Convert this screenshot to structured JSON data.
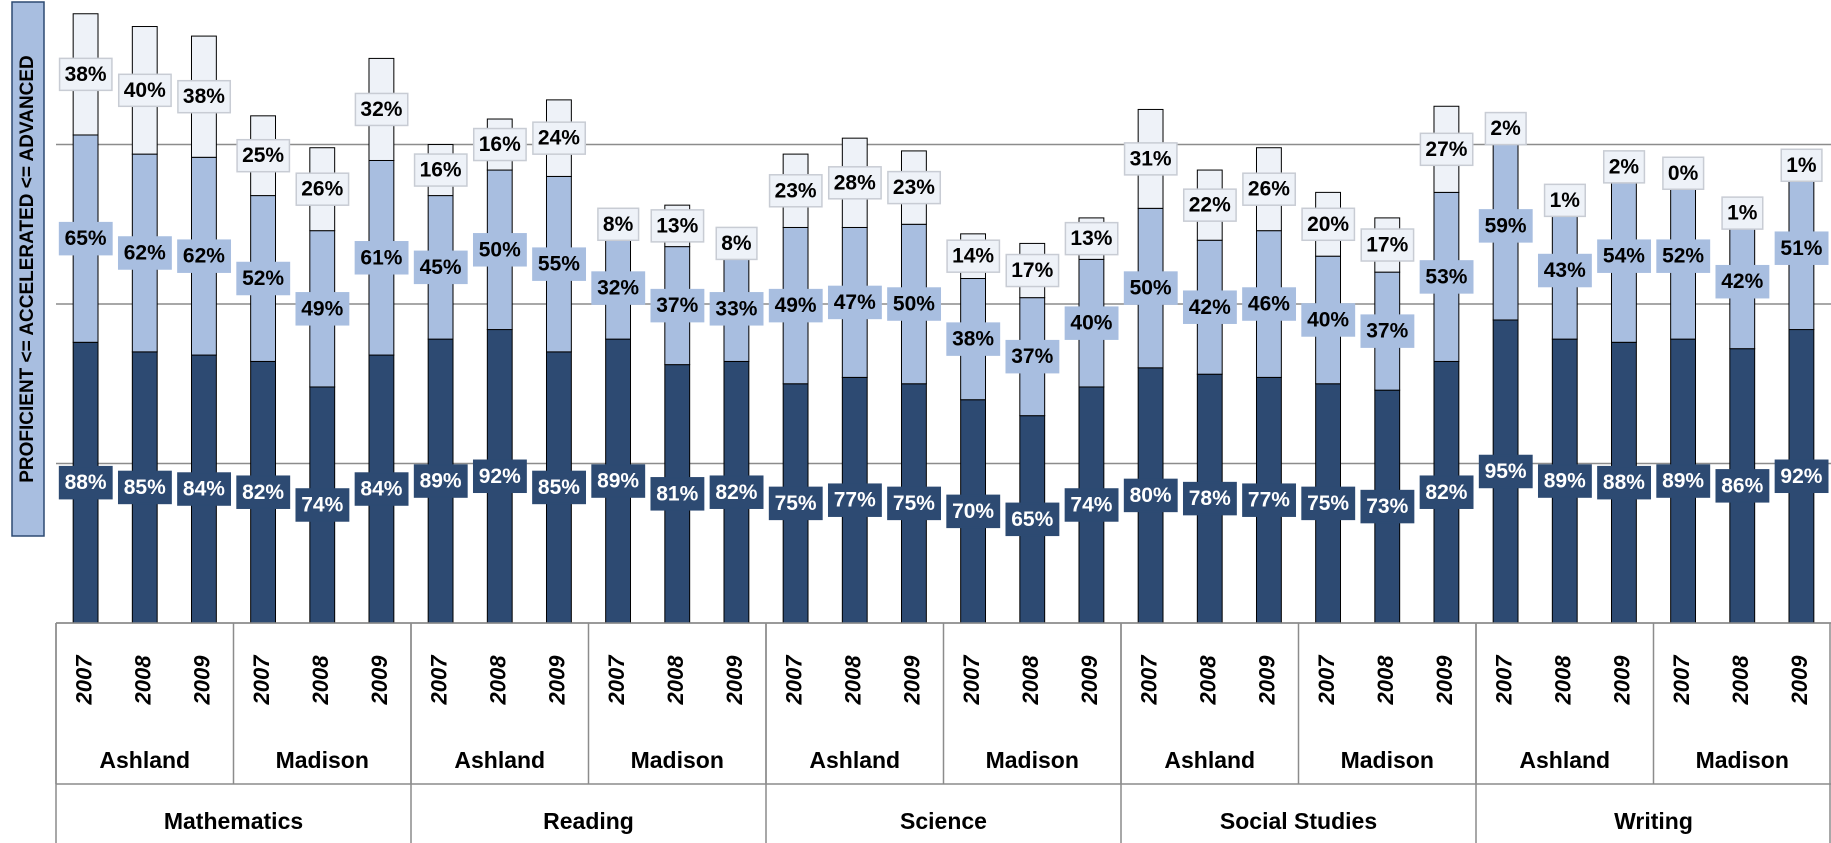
{
  "chart_data": {
    "type": "stacked-bar",
    "y_axis_label": "PROFICIENT <= ACCELERATED <= ADVANCED",
    "categories": [
      "2007",
      "2008",
      "2009",
      "2007",
      "2008",
      "2009",
      "2007",
      "2008",
      "2009",
      "2007",
      "2008",
      "2009",
      "2007",
      "2008",
      "2009",
      "2007",
      "2008",
      "2009",
      "2007",
      "2008",
      "2009",
      "2007",
      "2008",
      "2009",
      "2007",
      "2008",
      "2009",
      "2007",
      "2008",
      "2009"
    ],
    "schools": [
      "Ashland",
      "Madison",
      "Ashland",
      "Madison",
      "Ashland",
      "Madison",
      "Ashland",
      "Madison",
      "Ashland",
      "Madison"
    ],
    "subjects": [
      "Mathematics",
      "Reading",
      "Science",
      "Social Studies",
      "Writing"
    ],
    "series": [
      {
        "color": "#2d4a72",
        "label_text_color": "#ffffff",
        "values": [
          88,
          85,
          84,
          82,
          74,
          84,
          89,
          92,
          85,
          89,
          81,
          82,
          75,
          77,
          75,
          70,
          65,
          74,
          80,
          78,
          77,
          75,
          73,
          82,
          95,
          89,
          88,
          89,
          86,
          92
        ],
        "value_labels": [
          "88%",
          "85%",
          "84%",
          "82%",
          "74%",
          "84%",
          "89%",
          "92%",
          "85%",
          "89%",
          "81%",
          "82%",
          "75%",
          "77%",
          "75%",
          "70%",
          "65%",
          "74%",
          "80%",
          "78%",
          "77%",
          "75%",
          "73%",
          "82%",
          "95%",
          "89%",
          "88%",
          "89%",
          "86%",
          "92%"
        ]
      },
      {
        "color": "#a8bee0",
        "label_text_color": "#000000",
        "values": [
          65,
          62,
          62,
          52,
          49,
          61,
          45,
          50,
          55,
          32,
          37,
          33,
          49,
          47,
          50,
          38,
          37,
          40,
          50,
          42,
          46,
          40,
          37,
          53,
          59,
          43,
          54,
          52,
          42,
          51
        ],
        "value_labels": [
          "65%",
          "62%",
          "62%",
          "52%",
          "49%",
          "61%",
          "45%",
          "50%",
          "55%",
          "32%",
          "37%",
          "33%",
          "49%",
          "47%",
          "50%",
          "38%",
          "37%",
          "40%",
          "50%",
          "42%",
          "46%",
          "40%",
          "37%",
          "53%",
          "59%",
          "43%",
          "54%",
          "52%",
          "42%",
          "51%"
        ]
      },
      {
        "color": "#eef2f8",
        "label_text_color": "#000000",
        "values": [
          38,
          40,
          38,
          25,
          26,
          32,
          16,
          16,
          24,
          8,
          13,
          8,
          23,
          28,
          23,
          14,
          17,
          13,
          31,
          22,
          26,
          20,
          17,
          27,
          2,
          1,
          2,
          0,
          1,
          1
        ],
        "value_labels": [
          "38%",
          "40%",
          "38%",
          "25%",
          "26%",
          "32%",
          "16%",
          "16%",
          "24%",
          "8%",
          "13%",
          "8%",
          "23%",
          "28%",
          "23%",
          "14%",
          "17%",
          "13%",
          "31%",
          "22%",
          "26%",
          "20%",
          "17%",
          "27%",
          "2%",
          "1%",
          "2%",
          "0%",
          "1%",
          "1%"
        ]
      }
    ],
    "ylim": [
      0,
      195
    ],
    "yticks": [
      0,
      50,
      100,
      150
    ],
    "grid": true
  }
}
